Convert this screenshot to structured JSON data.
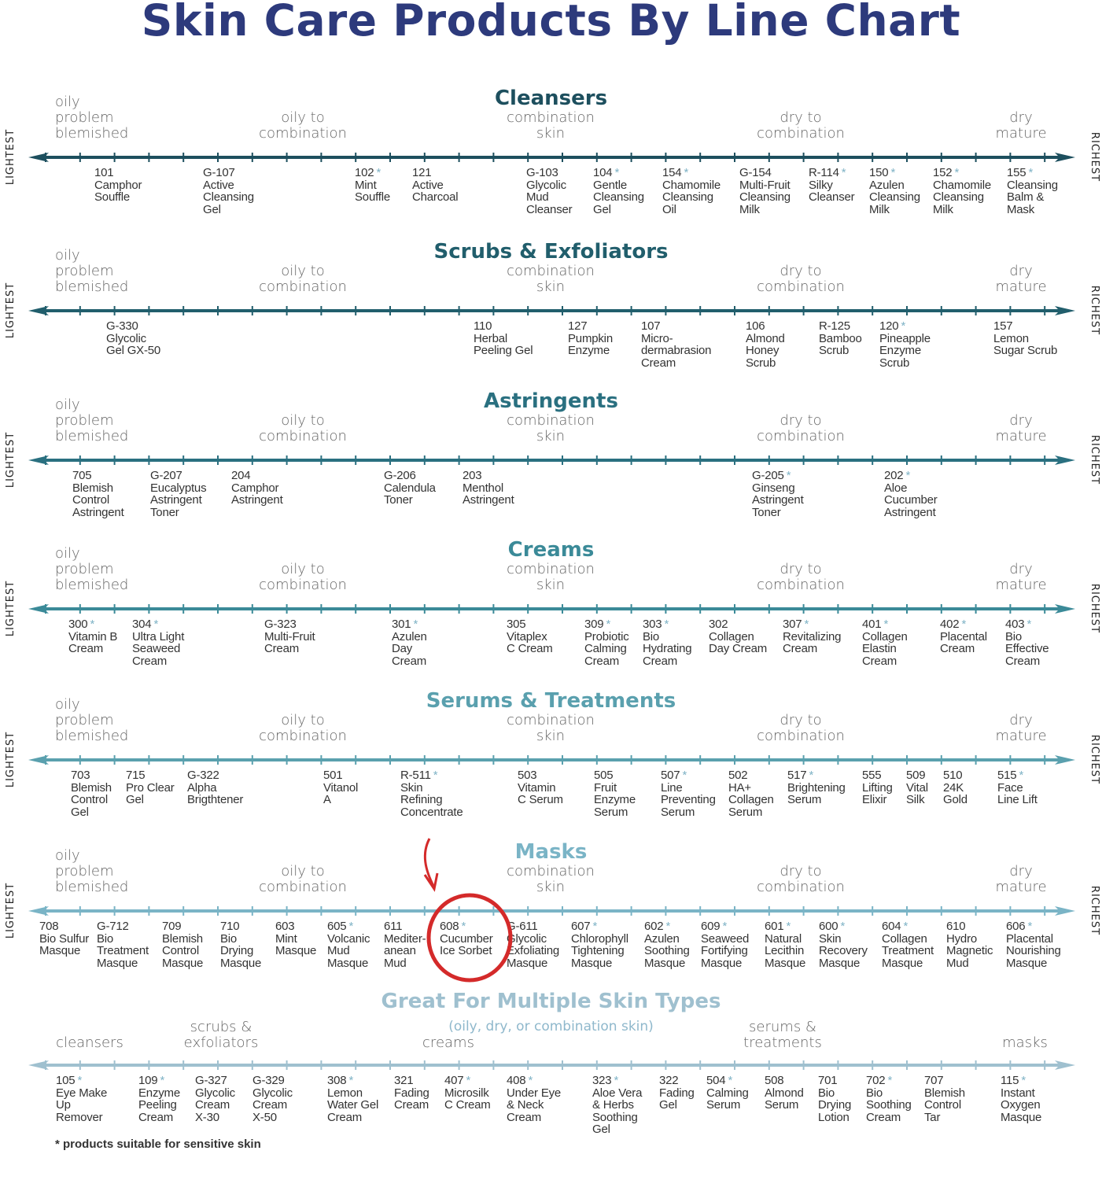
{
  "title": "Skin Care Products By Line Chart",
  "side_labels": {
    "left": "LIGHTEST",
    "right": "RICHEST"
  },
  "skin_types": [
    "oily\nproblem\nblemished",
    "oily to\ncombination",
    "combination\nskin",
    "dry to\ncombination",
    "dry\nmature"
  ],
  "footnote": "* products suitable for sensitive skin",
  "sensitive_marker": "*",
  "rows": [
    {
      "title": "Cleansers",
      "color": "#1d4f5e",
      "items": [
        {
          "code": "101",
          "sensitive": false,
          "name": "Camphor\nSouffle"
        },
        {
          "code": "G-107",
          "sensitive": false,
          "name": "Active\nCleansing\nGel"
        },
        {
          "code": "102",
          "sensitive": true,
          "name": "Mint\nSouffle"
        },
        {
          "code": "121",
          "sensitive": false,
          "name": "Active\nCharcoal"
        },
        {
          "code": "G-103",
          "sensitive": false,
          "name": "Glycolic\nMud\nCleanser"
        },
        {
          "code": "104",
          "sensitive": true,
          "name": "Gentle\nCleansing\nGel"
        },
        {
          "code": "154",
          "sensitive": true,
          "name": "Chamomile\nCleansing\nOil"
        },
        {
          "code": "G-154",
          "sensitive": false,
          "name": "Multi-Fruit\nCleansing\nMilk"
        },
        {
          "code": "R-114",
          "sensitive": true,
          "name": "Silky\nCleanser"
        },
        {
          "code": "150",
          "sensitive": true,
          "name": "Azulen\nCleansing\nMilk"
        },
        {
          "code": "152",
          "sensitive": true,
          "name": "Chamomile\nCleansing\nMilk"
        },
        {
          "code": "155",
          "sensitive": true,
          "name": "Cleansing\nBalm &\nMask"
        }
      ]
    },
    {
      "title": "Scrubs & Exfoliators",
      "color": "#215e6c",
      "items": [
        {
          "code": "G-330",
          "sensitive": false,
          "name": "Glycolic\nGel GX-50"
        },
        {
          "code": "110",
          "sensitive": false,
          "name": "Herbal\nPeeling Gel"
        },
        {
          "code": "127",
          "sensitive": false,
          "name": "Pumpkin\nEnzyme"
        },
        {
          "code": "107",
          "sensitive": false,
          "name": "Micro-\ndermabrasion\nCream"
        },
        {
          "code": "106",
          "sensitive": false,
          "name": "Almond\nHoney\nScrub"
        },
        {
          "code": "R-125",
          "sensitive": false,
          "name": "Bamboo\nScrub"
        },
        {
          "code": "120",
          "sensitive": true,
          "name": "Pineapple\nEnzyme\nScrub"
        },
        {
          "code": "157",
          "sensitive": false,
          "name": "Lemon\nSugar Scrub"
        }
      ]
    },
    {
      "title": "Astringents",
      "color": "#2a7080",
      "items": [
        {
          "code": "705",
          "sensitive": false,
          "name": "Blemish\nControl\nAstringent"
        },
        {
          "code": "G-207",
          "sensitive": false,
          "name": "Eucalyptus\nAstringent\nToner"
        },
        {
          "code": "204",
          "sensitive": false,
          "name": "Camphor\nAstringent"
        },
        {
          "code": "G-206",
          "sensitive": false,
          "name": "Calendula\nToner"
        },
        {
          "code": "203",
          "sensitive": false,
          "name": "Menthol\nAstringent"
        },
        {
          "code": "G-205",
          "sensitive": true,
          "name": "Ginseng\nAstringent\nToner"
        },
        {
          "code": "202",
          "sensitive": true,
          "name": "Aloe\nCucumber\nAstringent"
        }
      ]
    },
    {
      "title": "Creams",
      "color": "#3b8a98",
      "items": [
        {
          "code": "300",
          "sensitive": true,
          "name": "Vitamin B\nCream"
        },
        {
          "code": "304",
          "sensitive": true,
          "name": "Ultra Light\nSeaweed\nCream"
        },
        {
          "code": "G-323",
          "sensitive": false,
          "name": "Multi-Fruit\nCream"
        },
        {
          "code": "301",
          "sensitive": true,
          "name": "Azulen\nDay\nCream"
        },
        {
          "code": "305",
          "sensitive": false,
          "name": "Vitaplex\nC Cream"
        },
        {
          "code": "309",
          "sensitive": true,
          "name": "Probiotic\nCalming\nCream"
        },
        {
          "code": "303",
          "sensitive": true,
          "name": "Bio\nHydrating\nCream"
        },
        {
          "code": "302",
          "sensitive": false,
          "name": "Collagen\nDay Cream"
        },
        {
          "code": "307",
          "sensitive": true,
          "name": "Revitalizing\nCream"
        },
        {
          "code": "401",
          "sensitive": true,
          "name": "Collagen\nElastin\nCream"
        },
        {
          "code": "402",
          "sensitive": true,
          "name": "Placental\nCream"
        },
        {
          "code": "403",
          "sensitive": true,
          "name": "Bio\nEffective\nCream"
        }
      ]
    },
    {
      "title": "Serums & Treatments",
      "color": "#5aa0ae",
      "items": [
        {
          "code": "703",
          "sensitive": false,
          "name": "Blemish\nControl\nGel"
        },
        {
          "code": "715",
          "sensitive": false,
          "name": "Pro Clear\nGel"
        },
        {
          "code": "G-322",
          "sensitive": false,
          "name": "Alpha\nBrigthtener"
        },
        {
          "code": "501",
          "sensitive": false,
          "name": "Vitanol\nA"
        },
        {
          "code": "R-511",
          "sensitive": true,
          "name": "Skin\nRefining\nConcentrate"
        },
        {
          "code": "503",
          "sensitive": false,
          "name": "Vitamin\nC Serum"
        },
        {
          "code": "505",
          "sensitive": false,
          "name": "Fruit\nEnzyme\nSerum"
        },
        {
          "code": "507",
          "sensitive": true,
          "name": "Line\nPreventing\nSerum"
        },
        {
          "code": "502",
          "sensitive": false,
          "name": "HA+\nCollagen\nSerum"
        },
        {
          "code": "517",
          "sensitive": true,
          "name": "Brightening\nSerum"
        },
        {
          "code": "555",
          "sensitive": false,
          "name": "Lifting\nElixir"
        },
        {
          "code": "509",
          "sensitive": false,
          "name": "Vital\nSilk"
        },
        {
          "code": "510",
          "sensitive": false,
          "name": "24K\nGold"
        },
        {
          "code": "515",
          "sensitive": true,
          "name": "Face\nLine Lift"
        }
      ]
    },
    {
      "title": "Masks",
      "color": "#7ab4c6",
      "items": [
        {
          "code": "708",
          "sensitive": false,
          "name": "Bio Sulfur\nMasque"
        },
        {
          "code": "G-712",
          "sensitive": false,
          "name": "Bio\nTreatment\nMasque"
        },
        {
          "code": "709",
          "sensitive": false,
          "name": "Blemish\nControl\nMasque"
        },
        {
          "code": "710",
          "sensitive": false,
          "name": "Bio\nDrying\nMasque"
        },
        {
          "code": "603",
          "sensitive": false,
          "name": "Mint\nMasque"
        },
        {
          "code": "605",
          "sensitive": true,
          "name": "Volcanic\nMud\nMasque"
        },
        {
          "code": "611",
          "sensitive": false,
          "name": "Mediter-\nanean\nMud"
        },
        {
          "code": "608",
          "sensitive": true,
          "name": "Cucumber\nIce Sorbet"
        },
        {
          "code": "G-611",
          "sensitive": false,
          "name": "Glycolic\nExfoliating\nMasque"
        },
        {
          "code": "607",
          "sensitive": true,
          "name": "Chlorophyll\nTightening\nMasque"
        },
        {
          "code": "602",
          "sensitive": true,
          "name": "Azulen\nSoothing\nMasque"
        },
        {
          "code": "609",
          "sensitive": true,
          "name": "Seaweed\nFortifying\nMasque"
        },
        {
          "code": "601",
          "sensitive": true,
          "name": "Natural\nLecithin\nMasque"
        },
        {
          "code": "600",
          "sensitive": true,
          "name": "Skin\nRecovery\nMasque"
        },
        {
          "code": "604",
          "sensitive": true,
          "name": "Collagen\nTreatment\nMasque"
        },
        {
          "code": "610",
          "sensitive": false,
          "name": "Hydro\nMagnetic\nMud"
        },
        {
          "code": "606",
          "sensitive": true,
          "name": "Placental\nNourishing\nMasque"
        }
      ]
    }
  ],
  "multi": {
    "title": "Great For Multiple Skin Types",
    "subtitle": "(oily, dry, or combination skin)",
    "color": "#9fc0cf",
    "categories": [
      "cleansers",
      "scrubs &\nexfoliators",
      "creams",
      "serums &\ntreatments",
      "masks"
    ],
    "items": [
      {
        "code": "105",
        "sensitive": true,
        "name": "Eye Make\nUp\nRemover"
      },
      {
        "code": "109",
        "sensitive": true,
        "name": "Enzyme\nPeeling\nCream"
      },
      {
        "code": "G-327",
        "sensitive": false,
        "name": "Glycolic\nCream\nX-30"
      },
      {
        "code": "G-329",
        "sensitive": false,
        "name": "Glycolic\nCream\nX-50"
      },
      {
        "code": "308",
        "sensitive": true,
        "name": "Lemon\nWater Gel\nCream"
      },
      {
        "code": "321",
        "sensitive": false,
        "name": "Fading\nCream"
      },
      {
        "code": "407",
        "sensitive": true,
        "name": "Microsilk\nC Cream"
      },
      {
        "code": "408",
        "sensitive": true,
        "name": "Under Eye\n& Neck\nCream"
      },
      {
        "code": "323",
        "sensitive": true,
        "name": "Aloe Vera\n& Herbs\nSoothing\nGel"
      },
      {
        "code": "322",
        "sensitive": false,
        "name": "Fading\nGel"
      },
      {
        "code": "504",
        "sensitive": true,
        "name": "Calming\nSerum"
      },
      {
        "code": "508",
        "sensitive": false,
        "name": "Almond\nSerum"
      },
      {
        "code": "701",
        "sensitive": false,
        "name": "Bio\nDrying\nLotion"
      },
      {
        "code": "702",
        "sensitive": true,
        "name": "Bio\nSoothing\nCream"
      },
      {
        "code": "707",
        "sensitive": false,
        "name": "Blemish\nControl\nTar"
      },
      {
        "code": "115",
        "sensitive": true,
        "name": "Instant\nOxygen\nMasque"
      }
    ]
  },
  "highlight": {
    "item_code": "608",
    "color": "#d42a2a"
  }
}
